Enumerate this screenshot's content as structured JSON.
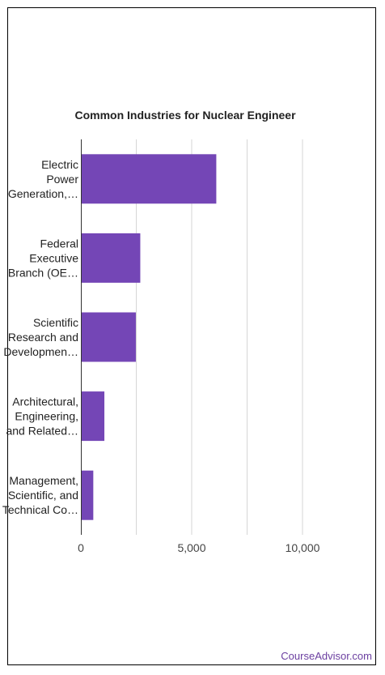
{
  "chart_data": {
    "type": "bar",
    "orientation": "horizontal",
    "title": "Common Industries for Nuclear Engineer",
    "xlabel": "",
    "ylabel": "",
    "categories": [
      [
        "Electric",
        "Power",
        "Generation,…"
      ],
      [
        "Federal",
        "Executive",
        "Branch (OE…"
      ],
      [
        "Scientific",
        "Research and",
        "Developmen…"
      ],
      [
        "Architectural,",
        "Engineering,",
        "and Related…"
      ],
      [
        "Management,",
        "Scientific, and",
        "Technical Co…"
      ]
    ],
    "values": [
      6110,
      2680,
      2480,
      1060,
      560
    ],
    "xlim": [
      0,
      10000
    ],
    "ticks": [
      0,
      5000,
      10000
    ],
    "tick_labels": [
      "0",
      "5,000",
      "10,000"
    ],
    "grid": true,
    "bar_color": "#7446b6"
  },
  "footer": {
    "brand": "CourseAdvisor.com"
  }
}
